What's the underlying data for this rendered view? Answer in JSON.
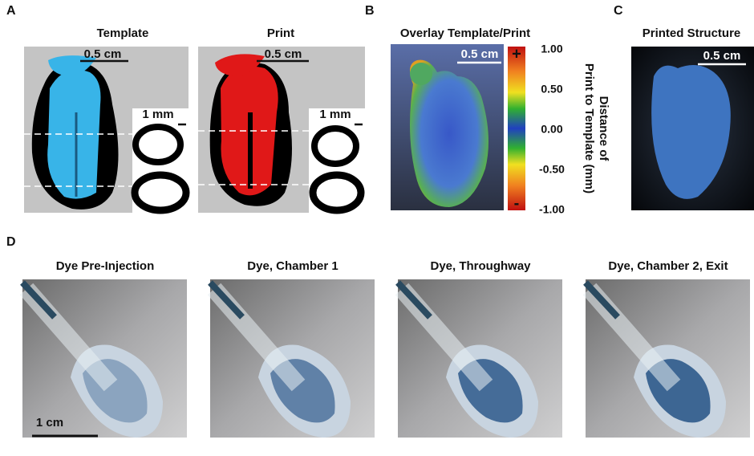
{
  "panels": {
    "a": {
      "label": "A",
      "template": {
        "title": "Template",
        "scale": "0.5 cm",
        "slice_scale": "1 mm"
      },
      "print": {
        "title": "Print",
        "scale": "0.5 cm",
        "slice_scale": "1 mm"
      }
    },
    "b": {
      "label": "B",
      "title": "Overlay Template/Print",
      "scale": "0.5 cm",
      "plus": "+",
      "minus": "-",
      "ticks": [
        "1.00",
        "0.50",
        "0.00",
        "-0.50",
        "-1.00"
      ],
      "axis_label": [
        "Distance of",
        "Print to Template (mm)"
      ]
    },
    "c": {
      "label": "C",
      "title": "Printed Structure",
      "scale": "0.5 cm"
    },
    "d": {
      "label": "D",
      "titles": [
        "Dye Pre-Injection",
        "Dye, Chamber 1",
        "Dye, Throughway",
        "Dye, Chamber 2, Exit"
      ],
      "scale": "1 cm"
    }
  }
}
